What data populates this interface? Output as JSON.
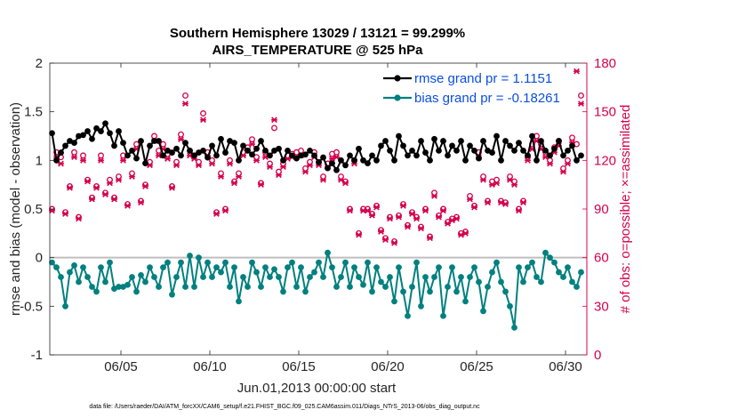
{
  "chart_data": {
    "type": "line",
    "title": "Southern Hemisphere 13029 / 13121 = 99.299%",
    "subtitle": "AIRS_TEMPERATURE @ 525 hPa",
    "xlabel": "Jun.01,2013 00:00:00 start",
    "ylabel": "rmse and bias (model - observation)",
    "ylabel_right": "# of obs: o=possible; ×=assimilated",
    "footer": "data file: /Users/raeder/DAI/ATM_forcXX/CAM6_setup/f.e21.FHIST_BGC.f09_025.CAM6assim.011/Diags_NTrS_2013-06/obs_diag_output.nc",
    "xlim": [
      1.0,
      31.2
    ],
    "ylim": [
      -1,
      2
    ],
    "ylim_right": [
      0,
      180
    ],
    "x_ticks": [
      5,
      10,
      15,
      20,
      25,
      30
    ],
    "x_tick_labels": [
      "06/05",
      "06/10",
      "06/15",
      "06/20",
      "06/25",
      "06/30"
    ],
    "y_ticks": [
      -1,
      -0.5,
      0,
      0.5,
      1,
      1.5,
      2
    ],
    "y_tick_labels": [
      "-1",
      "-0.5",
      "0",
      "0.5",
      "1",
      "1.5",
      "2"
    ],
    "y_ticks_right": [
      0,
      30,
      60,
      90,
      120,
      150,
      180
    ],
    "y_tick_labels_right": [
      "0",
      "30",
      "60",
      "90",
      "120",
      "150",
      "180"
    ],
    "legend": [
      {
        "label": "rmse grand pr = 1.1151"
      },
      {
        "label": "bias grand pr = -0.18261"
      }
    ],
    "colors": {
      "rmse": "#000000",
      "bias": "#00807f",
      "obs": "#d6004c",
      "zero_line": "#bfbfbf"
    },
    "series": [
      {
        "name": "rmse",
        "x": [
          1.125,
          1.375,
          1.625,
          1.875,
          2.125,
          2.375,
          2.625,
          2.875,
          3.125,
          3.375,
          3.625,
          3.875,
          4.125,
          4.375,
          4.625,
          4.875,
          5.125,
          5.375,
          5.625,
          5.875,
          6.125,
          6.375,
          6.625,
          6.875,
          7.125,
          7.375,
          7.625,
          7.875,
          8.125,
          8.375,
          8.625,
          8.875,
          9.125,
          9.375,
          9.625,
          9.875,
          10.125,
          10.375,
          10.625,
          10.875,
          11.125,
          11.375,
          11.625,
          11.875,
          12.125,
          12.375,
          12.625,
          12.875,
          13.125,
          13.375,
          13.625,
          13.875,
          14.125,
          14.375,
          14.625,
          14.875,
          15.125,
          15.375,
          15.625,
          15.875,
          16.125,
          16.375,
          16.625,
          16.875,
          17.125,
          17.375,
          17.625,
          17.875,
          18.125,
          18.375,
          18.625,
          18.875,
          19.125,
          19.375,
          19.625,
          19.875,
          20.125,
          20.375,
          20.625,
          20.875,
          21.125,
          21.375,
          21.625,
          21.875,
          22.125,
          22.375,
          22.625,
          22.875,
          23.125,
          23.375,
          23.625,
          23.875,
          24.125,
          24.375,
          24.625,
          24.875,
          25.125,
          25.375,
          25.625,
          25.875,
          26.125,
          26.375,
          26.625,
          26.875,
          27.125,
          27.375,
          27.625,
          27.875,
          28.125,
          28.375,
          28.625,
          28.875,
          29.125,
          29.375,
          29.625,
          29.875,
          30.125,
          30.375,
          30.625,
          30.875
        ],
        "values": [
          1.28,
          1.0,
          1.08,
          1.15,
          1.2,
          1.18,
          1.25,
          1.26,
          1.3,
          1.22,
          1.33,
          1.3,
          1.38,
          1.28,
          1.15,
          1.3,
          1.18,
          1.05,
          1.1,
          1.02,
          1.2,
          0.97,
          1.15,
          1.2,
          1.2,
          1.05,
          1.1,
          1.08,
          1.12,
          1.05,
          1.18,
          1.1,
          1.05,
          1.08,
          1.1,
          1.03,
          1.15,
          1.05,
          1.22,
          1.08,
          1.2,
          1.18,
          1.0,
          1.15,
          1.1,
          1.06,
          1.12,
          1.2,
          1.1,
          1.05,
          1.1,
          1.12,
          1.0,
          1.1,
          1.05,
          1.02,
          1.05,
          1.06,
          1.1,
          1.05,
          0.98,
          1.03,
          0.92,
          0.97,
          0.9,
          1.0,
          0.95,
          1.05,
          1.0,
          1.12,
          1.0,
          0.97,
          1.05,
          1.0,
          1.15,
          1.2,
          1.1,
          1.0,
          1.25,
          1.15,
          1.05,
          1.1,
          1.05,
          1.2,
          1.08,
          1.0,
          1.22,
          1.1,
          1.2,
          1.05,
          1.15,
          1.1,
          1.2,
          1.0,
          1.15,
          1.1,
          1.02,
          1.2,
          1.1,
          1.08,
          1.25,
          1.0,
          1.2,
          1.15,
          1.1,
          1.18,
          1.1,
          1.05,
          1.25,
          1.0,
          1.2,
          1.1,
          1.05,
          1.12,
          1.2,
          1.05,
          1.1,
          1.15,
          1.0,
          1.05
        ]
      },
      {
        "name": "bias",
        "x": [
          1.125,
          1.375,
          1.625,
          1.875,
          2.125,
          2.375,
          2.625,
          2.875,
          3.125,
          3.375,
          3.625,
          3.875,
          4.125,
          4.375,
          4.625,
          4.875,
          5.125,
          5.375,
          5.625,
          5.875,
          6.125,
          6.375,
          6.625,
          6.875,
          7.125,
          7.375,
          7.625,
          7.875,
          8.125,
          8.375,
          8.625,
          8.875,
          9.125,
          9.375,
          9.625,
          9.875,
          10.125,
          10.375,
          10.625,
          10.875,
          11.125,
          11.375,
          11.625,
          11.875,
          12.125,
          12.375,
          12.625,
          12.875,
          13.125,
          13.375,
          13.625,
          13.875,
          14.125,
          14.375,
          14.625,
          14.875,
          15.125,
          15.375,
          15.625,
          15.875,
          16.125,
          16.375,
          16.625,
          16.875,
          17.125,
          17.375,
          17.625,
          17.875,
          18.125,
          18.375,
          18.625,
          18.875,
          19.125,
          19.375,
          19.625,
          19.875,
          20.125,
          20.375,
          20.625,
          20.875,
          21.125,
          21.375,
          21.625,
          21.875,
          22.125,
          22.375,
          22.625,
          22.875,
          23.125,
          23.375,
          23.625,
          23.875,
          24.125,
          24.375,
          24.625,
          24.875,
          25.125,
          25.375,
          25.625,
          25.875,
          26.125,
          26.375,
          26.625,
          26.875,
          27.125,
          27.375,
          27.625,
          27.875,
          28.125,
          28.375,
          28.625,
          28.875,
          29.125,
          29.375,
          29.625,
          29.875,
          30.125,
          30.375,
          30.625,
          30.875
        ],
        "values": [
          -0.05,
          -0.1,
          -0.2,
          -0.5,
          -0.15,
          -0.08,
          -0.25,
          -0.1,
          -0.2,
          -0.3,
          -0.35,
          -0.1,
          -0.25,
          -0.05,
          -0.32,
          -0.3,
          -0.3,
          -0.28,
          -0.2,
          -0.35,
          -0.18,
          -0.25,
          -0.1,
          -0.2,
          -0.3,
          -0.1,
          -0.05,
          -0.38,
          -0.2,
          -0.05,
          -0.3,
          0.02,
          -0.3,
          0.0,
          -0.2,
          -0.05,
          -0.2,
          -0.1,
          -0.15,
          -0.05,
          -0.3,
          -0.1,
          -0.45,
          -0.2,
          -0.3,
          -0.05,
          -0.15,
          -0.3,
          -0.1,
          -0.2,
          -0.12,
          -0.2,
          -0.35,
          -0.1,
          -0.05,
          -0.3,
          -0.1,
          -0.35,
          -0.2,
          -0.15,
          -0.05,
          -0.2,
          0.05,
          -0.1,
          -0.3,
          -0.2,
          -0.05,
          -0.3,
          -0.1,
          -0.2,
          -0.28,
          -0.05,
          -0.35,
          -0.1,
          -0.25,
          -0.3,
          -0.2,
          -0.45,
          -0.1,
          -0.35,
          -0.6,
          -0.3,
          -0.05,
          -0.5,
          -0.2,
          -0.35,
          -0.2,
          -0.1,
          -0.6,
          -0.3,
          -0.1,
          -0.35,
          -0.2,
          -0.45,
          -0.2,
          -0.1,
          -0.25,
          -0.55,
          -0.3,
          -0.15,
          -0.05,
          -0.25,
          -0.35,
          -0.5,
          -0.72,
          -0.1,
          -0.25,
          -0.1,
          -0.05,
          -0.2,
          -0.25,
          0.05,
          0.0,
          -0.05,
          -0.15,
          -0.2,
          -0.1,
          -0.25,
          -0.3,
          -0.15
        ]
      },
      {
        "name": "obs possible",
        "x": [
          1.125,
          1.375,
          1.625,
          1.875,
          2.125,
          2.375,
          2.625,
          2.875,
          3.125,
          3.375,
          3.625,
          3.875,
          4.125,
          4.375,
          4.625,
          4.875,
          5.125,
          5.375,
          5.625,
          5.875,
          6.125,
          6.375,
          6.625,
          6.875,
          7.125,
          7.375,
          7.625,
          7.875,
          8.125,
          8.375,
          8.625,
          8.875,
          9.125,
          9.375,
          9.625,
          9.875,
          10.125,
          10.375,
          10.625,
          10.875,
          11.125,
          11.375,
          11.625,
          11.875,
          12.125,
          12.375,
          12.625,
          12.875,
          13.125,
          13.375,
          13.625,
          13.875,
          14.125,
          14.375,
          14.625,
          14.875,
          15.125,
          15.375,
          15.625,
          15.875,
          16.125,
          16.375,
          16.625,
          16.875,
          17.125,
          17.375,
          17.625,
          17.875,
          18.125,
          18.375,
          18.625,
          18.875,
          19.125,
          19.375,
          19.625,
          19.875,
          20.125,
          20.375,
          20.625,
          20.875,
          21.125,
          21.375,
          21.625,
          21.875,
          22.125,
          22.375,
          22.625,
          22.875,
          23.125,
          23.375,
          23.625,
          23.875,
          24.125,
          24.375,
          24.625,
          24.875,
          25.125,
          25.375,
          25.625,
          25.875,
          26.125,
          26.375,
          26.625,
          26.875,
          27.125,
          27.375,
          27.625,
          27.875,
          28.125,
          28.375,
          28.625,
          28.875,
          29.125,
          29.375,
          29.625,
          29.875,
          30.125,
          30.375,
          30.625,
          30.875
        ],
        "values": [
          90,
          125,
          122,
          88,
          104,
          125,
          85,
          123,
          108,
          97,
          104,
          123,
          100,
          108,
          97,
          110,
          123,
          93,
          112,
          130,
          95,
          105,
          119,
          135,
          126,
          130,
          124,
          104,
          119,
          136,
          160,
          126,
          123,
          119,
          149,
          125,
          120,
          88,
          112,
          90,
          120,
          107,
          112,
          125,
          128,
          133,
          122,
          106,
          125,
          118,
          140,
          113,
          118,
          123,
          124,
          125,
          126,
          115,
          119,
          125,
          119,
          110,
          118,
          124,
          125,
          110,
          107,
          90,
          120,
          75,
          90,
          90,
          87,
          92,
          77,
          72,
          85,
          70,
          86,
          93,
          80,
          88,
          85,
          79,
          90,
          73,
          100,
          86,
          90,
          82,
          84,
          85,
          75,
          76,
          98,
          92,
          125,
          110,
          95,
          107,
          108,
          95,
          94,
          110,
          107,
          90,
          95,
          122,
          130,
          135,
          130,
          125,
          120,
          128,
          132,
          115,
          120,
          134,
          130,
          160
        ]
      },
      {
        "name": "obs assimilated",
        "x": [
          1.125,
          1.375,
          1.625,
          1.875,
          2.125,
          2.375,
          2.625,
          2.875,
          3.125,
          3.375,
          3.625,
          3.875,
          4.125,
          4.375,
          4.625,
          4.875,
          5.125,
          5.375,
          5.625,
          5.875,
          6.125,
          6.375,
          6.625,
          6.875,
          7.125,
          7.375,
          7.625,
          7.875,
          8.125,
          8.375,
          8.625,
          8.875,
          9.125,
          9.375,
          9.625,
          9.875,
          10.125,
          10.375,
          10.625,
          10.875,
          11.125,
          11.375,
          11.625,
          11.875,
          12.125,
          12.375,
          12.625,
          12.875,
          13.125,
          13.375,
          13.625,
          13.875,
          14.125,
          14.375,
          14.625,
          14.875,
          15.125,
          15.375,
          15.625,
          15.875,
          16.125,
          16.375,
          16.625,
          16.875,
          17.125,
          17.375,
          17.625,
          17.875,
          18.125,
          18.375,
          18.625,
          18.875,
          19.125,
          19.375,
          19.625,
          19.875,
          20.125,
          20.375,
          20.625,
          20.875,
          21.125,
          21.375,
          21.625,
          21.875,
          22.125,
          22.375,
          22.625,
          22.875,
          23.125,
          23.375,
          23.625,
          23.875,
          24.125,
          24.375,
          24.625,
          24.875,
          25.125,
          25.375,
          25.625,
          25.875,
          26.125,
          26.375,
          26.625,
          26.875,
          27.125,
          27.375,
          27.625,
          27.875,
          28.125,
          28.375,
          28.625,
          28.875,
          29.125,
          29.375,
          29.625,
          29.875,
          30.125,
          30.375,
          30.625,
          30.875
        ],
        "values": [
          89,
          122,
          118,
          87,
          103,
          122,
          84,
          120,
          107,
          96,
          103,
          120,
          99,
          106,
          96,
          108,
          120,
          92,
          110,
          127,
          94,
          104,
          117,
          132,
          123,
          127,
          121,
          103,
          117,
          133,
          155,
          123,
          121,
          117,
          145,
          123,
          118,
          87,
          110,
          89,
          118,
          106,
          110,
          123,
          126,
          130,
          120,
          105,
          122,
          116,
          145,
          111,
          116,
          121,
          122,
          122,
          123,
          113,
          117,
          122,
          117,
          108,
          116,
          121,
          122,
          108,
          106,
          89,
          118,
          74,
          89,
          89,
          86,
          91,
          76,
          71,
          84,
          69,
          85,
          92,
          79,
          87,
          84,
          78,
          89,
          72,
          98,
          85,
          89,
          81,
          83,
          84,
          74,
          75,
          96,
          91,
          122,
          108,
          94,
          105,
          106,
          94,
          93,
          108,
          105,
          89,
          94,
          120,
          127,
          132,
          127,
          122,
          118,
          125,
          129,
          113,
          118,
          131,
          175,
          155
        ]
      }
    ]
  }
}
